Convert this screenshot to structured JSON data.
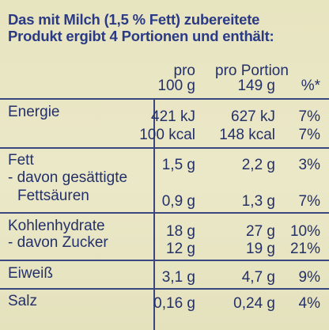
{
  "intro": {
    "line1": "Das mit Milch (1,5 % Fett) zubereitete",
    "line2": "Produkt ergibt 4 Portionen und enthält:"
  },
  "header": {
    "col1_line1": "pro",
    "col1_line2": "100 g",
    "col2_line1": "pro Portion",
    "col2_line2": "149 g",
    "col3_line2": "%*"
  },
  "rows": {
    "energie": {
      "label": "Energie",
      "per100_kj": "421 kJ",
      "per100_kcal": "100 kcal",
      "portion_kj": "627 kJ",
      "portion_kcal": "148 kcal",
      "pct_kj": "7%",
      "pct_kcal": "7%"
    },
    "fett": {
      "label": "Fett",
      "per100": "1,5 g",
      "portion": "2,2 g",
      "pct": "3%"
    },
    "gesaettigte": {
      "label_line1": "- davon gesättigte",
      "label_line2": "Fettsäuren",
      "per100": "0,9 g",
      "portion": "1,3 g",
      "pct": "7%"
    },
    "kohlenhydrate": {
      "label": "Kohlenhydrate",
      "per100": "18 g",
      "portion": "27 g",
      "pct": "10%"
    },
    "zucker": {
      "label": "- davon Zucker",
      "per100": "12 g",
      "portion": "19 g",
      "pct": "21%"
    },
    "eiweiss": {
      "label": "Eiweiß",
      "per100": "3,1 g",
      "portion": "4,7 g",
      "pct": "9%"
    },
    "salz": {
      "label": "Salz",
      "per100": "0,16 g",
      "portion": "0,24 g",
      "pct": "4%"
    }
  },
  "colors": {
    "text": "#243068",
    "rules": "#3a4680",
    "background": "#e9e6c4"
  }
}
